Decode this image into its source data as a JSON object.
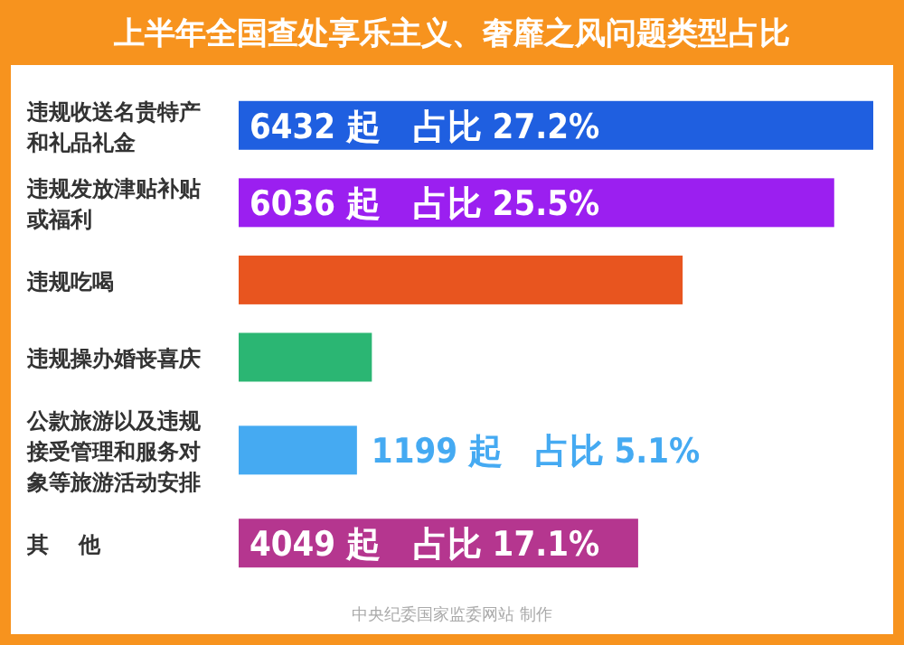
{
  "chart_data": {
    "type": "bar",
    "orientation": "horizontal",
    "title": "上半年全国查处享乐主义、奢靡之风问题类型占比",
    "categories": [
      "违规收送名贵特产和礼品礼金",
      "违规发放津贴补贴或福利",
      "违规吃喝",
      "违规操办婚丧喜庆",
      "公款旅游以及违规接受管理和服务对象等旅游活动安排",
      "其    他"
    ],
    "values": [
      6432,
      6036,
      4500,
      1350,
      1199,
      4049
    ],
    "colors": [
      "#1f5fe0",
      "#9b1ff0",
      "#e8551f",
      "#2bb673",
      "#45aaf2",
      "#b5368f"
    ],
    "value_labels": [
      "6432 起   占比 27.2%",
      "6036 起   占比 25.5%",
      null,
      null,
      "1199 起   占比 5.1%",
      "4049 起   占比 17.1%"
    ],
    "annotations": [
      "中央纪委国家监委网站 制作"
    ]
  }
}
